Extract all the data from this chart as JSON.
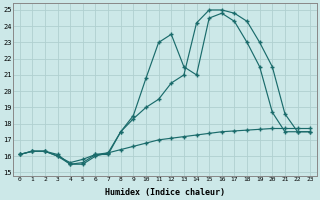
{
  "xlabel": "Humidex (Indice chaleur)",
  "bg_color": "#cce8e8",
  "grid_color": "#b0d0d0",
  "line_color": "#1a6b6b",
  "xlim": [
    -0.5,
    23.5
  ],
  "ylim": [
    14.8,
    25.4
  ],
  "xticks": [
    0,
    1,
    2,
    3,
    4,
    5,
    6,
    7,
    8,
    9,
    10,
    11,
    12,
    13,
    14,
    15,
    16,
    17,
    18,
    19,
    20,
    21,
    22,
    23
  ],
  "yticks": [
    15,
    16,
    17,
    18,
    19,
    20,
    21,
    22,
    23,
    24,
    25
  ],
  "line1_x": [
    0,
    1,
    2,
    3,
    4,
    5,
    6,
    7,
    8,
    9,
    10,
    11,
    12,
    13,
    14,
    15,
    16,
    17,
    18,
    19,
    20,
    21,
    22,
    23
  ],
  "line1_y": [
    16.1,
    16.3,
    16.3,
    16.1,
    15.5,
    15.6,
    16.1,
    16.1,
    17.5,
    18.3,
    19.0,
    19.5,
    20.5,
    21.0,
    24.2,
    25.0,
    25.0,
    24.8,
    24.3,
    23.0,
    21.5,
    18.6,
    17.5,
    17.5
  ],
  "line2_x": [
    0,
    1,
    2,
    3,
    4,
    5,
    6,
    7,
    8,
    9,
    10,
    11,
    12,
    13,
    14,
    15,
    16,
    17,
    18,
    19,
    20,
    21,
    22,
    23
  ],
  "line2_y": [
    16.1,
    16.3,
    16.3,
    16.0,
    15.6,
    15.8,
    16.1,
    16.2,
    17.5,
    18.5,
    20.8,
    23.0,
    23.5,
    21.5,
    21.0,
    24.5,
    24.8,
    24.3,
    23.0,
    21.5,
    18.7,
    17.5,
    17.5,
    17.5
  ],
  "line3_x": [
    0,
    1,
    2,
    3,
    4,
    5,
    6,
    7,
    8,
    9,
    10,
    11,
    12,
    13,
    14,
    15,
    16,
    17,
    18,
    19,
    20,
    21,
    22,
    23
  ],
  "line3_y": [
    16.1,
    16.3,
    16.3,
    16.0,
    15.5,
    15.5,
    16.0,
    16.2,
    16.4,
    16.6,
    16.8,
    17.0,
    17.1,
    17.2,
    17.3,
    17.4,
    17.5,
    17.55,
    17.6,
    17.65,
    17.7,
    17.7,
    17.7,
    17.7
  ]
}
